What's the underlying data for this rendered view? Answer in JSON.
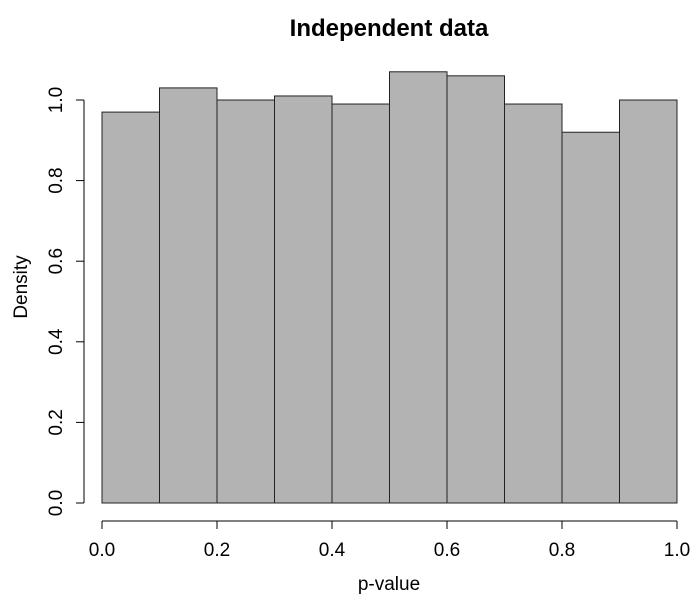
{
  "chart_data": {
    "type": "bar",
    "title": "Independent data",
    "xlabel": "p-value",
    "ylabel": "Density",
    "bins": [
      {
        "start": 0.0,
        "end": 0.1,
        "density": 0.97
      },
      {
        "start": 0.1,
        "end": 0.2,
        "density": 1.03
      },
      {
        "start": 0.2,
        "end": 0.3,
        "density": 1.0
      },
      {
        "start": 0.3,
        "end": 0.4,
        "density": 1.01
      },
      {
        "start": 0.4,
        "end": 0.5,
        "density": 0.99
      },
      {
        "start": 0.5,
        "end": 0.6,
        "density": 1.07
      },
      {
        "start": 0.6,
        "end": 0.7,
        "density": 1.06
      },
      {
        "start": 0.7,
        "end": 0.8,
        "density": 0.99
      },
      {
        "start": 0.8,
        "end": 0.9,
        "density": 0.92
      },
      {
        "start": 0.9,
        "end": 1.0,
        "density": 1.0
      }
    ],
    "xlim": [
      0,
      1
    ],
    "ylim": [
      0,
      1.07
    ],
    "x_ticks": [
      "0.0",
      "0.2",
      "0.4",
      "0.6",
      "0.8",
      "1.0"
    ],
    "y_ticks": [
      "0.0",
      "0.2",
      "0.4",
      "0.6",
      "0.8",
      "1.0"
    ],
    "grid": false,
    "bar_color": "#b3b3b3"
  }
}
